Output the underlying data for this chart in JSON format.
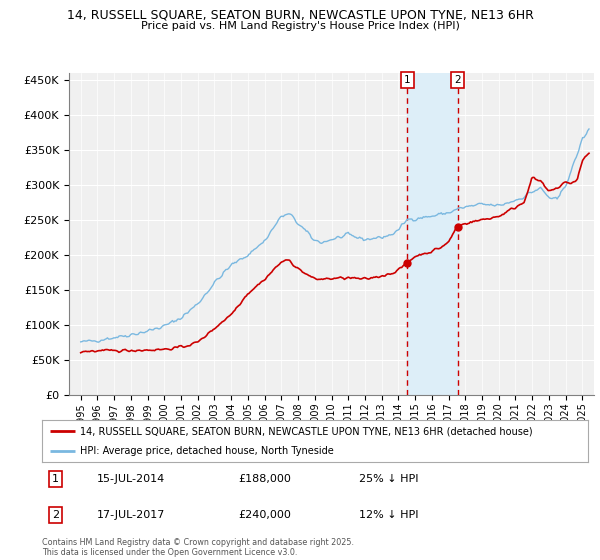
{
  "title": "14, RUSSELL SQUARE, SEATON BURN, NEWCASTLE UPON TYNE, NE13 6HR",
  "subtitle": "Price paid vs. HM Land Registry's House Price Index (HPI)",
  "legend_line1": "14, RUSSELL SQUARE, SEATON BURN, NEWCASTLE UPON TYNE, NE13 6HR (detached house)",
  "legend_line2": "HPI: Average price, detached house, North Tyneside",
  "sale1_date": "15-JUL-2014",
  "sale1_price": 188000,
  "sale1_hpi_diff": "25% ↓ HPI",
  "sale2_date": "17-JUL-2017",
  "sale2_price": 240000,
  "sale2_hpi_diff": "12% ↓ HPI",
  "footer": "Contains HM Land Registry data © Crown copyright and database right 2025.\nThis data is licensed under the Open Government Licence v3.0.",
  "hpi_color": "#7ab8e0",
  "price_color": "#cc0000",
  "vline_color": "#cc0000",
  "shade_color": "#ddeef8",
  "bg_color": "#f0f0f0",
  "ylim": [
    0,
    460000
  ],
  "yticks": [
    0,
    50000,
    100000,
    150000,
    200000,
    250000,
    300000,
    350000,
    400000,
    450000
  ],
  "sale1_x": 2014.54,
  "sale2_x": 2017.54
}
